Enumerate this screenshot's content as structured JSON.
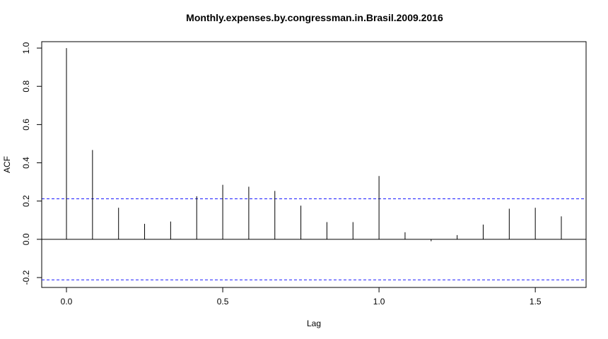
{
  "chart_data": {
    "type": "bar",
    "title": "Monthly.expenses.by.congressman.in.Brasil.2009.2016",
    "xlabel": "Lag",
    "ylabel": "ACF",
    "xlim": [
      -0.0792,
      1.6625
    ],
    "ylim": [
      -0.2517,
      1.0335
    ],
    "x_ticks": [
      0.0,
      0.5,
      1.0,
      1.5
    ],
    "x_tick_labels": [
      "0.0",
      "0.5",
      "1.0",
      "1.5"
    ],
    "y_ticks": [
      -0.2,
      0.0,
      0.2,
      0.4,
      0.6,
      0.8,
      1.0
    ],
    "y_tick_labels": [
      "-0.2",
      "0.0",
      "0.2",
      "0.4",
      "0.6",
      "0.8",
      "1.0"
    ],
    "series": [
      {
        "x": [
          0.0,
          0.0833,
          0.1667,
          0.25,
          0.3333,
          0.4167,
          0.5,
          0.5833,
          0.6667,
          0.75,
          0.8333,
          0.9167,
          1.0,
          1.0833,
          1.1667,
          1.25,
          1.3333,
          1.4167,
          1.5,
          1.5833
        ],
        "values": [
          1.0,
          0.467,
          0.165,
          0.081,
          0.093,
          0.225,
          0.285,
          0.275,
          0.253,
          0.176,
          0.09,
          0.09,
          0.331,
          0.037,
          -0.01,
          0.022,
          0.077,
          0.16,
          0.165,
          0.12
        ]
      }
    ],
    "confidence_bounds": [
      0.212,
      -0.212
    ],
    "colors": {
      "spike": "#000000",
      "zero_line": "#000000",
      "confidence_line": "#1a1aff",
      "frame": "#000000"
    },
    "grid": false,
    "legend": "none"
  }
}
